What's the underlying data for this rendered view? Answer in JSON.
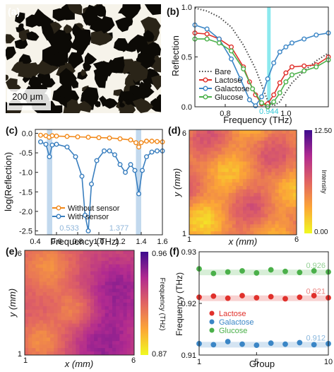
{
  "panel_labels": [
    "(a)",
    "(b)",
    "(c)",
    "(d)",
    "(e)",
    "(f)"
  ],
  "colors": {
    "bare": "#444444",
    "lactose": "#e0312c",
    "galactose": "#3b86c6",
    "glucose": "#4bb04a",
    "without_sensor": "#f28a1c",
    "with_sensor": "#3a7fbf",
    "cyan_marker": "#6fe3ea",
    "band": "#b3d0ea"
  },
  "panel_a": {
    "scale_bar_label": "200 μm"
  },
  "panel_d": {
    "xlabel": "x (mm)",
    "ylabel": "y (mm)",
    "x_ticks": [
      "1",
      "6"
    ],
    "y_ticks": [
      "6",
      "1"
    ],
    "colorbar_label": "Intensity",
    "colorbar_ticks": [
      "12.50",
      "0.00"
    ]
  },
  "panel_e": {
    "xlabel": "x (mm)",
    "ylabel": "y (mm)",
    "x_ticks": [
      "1",
      "6"
    ],
    "y_ticks": [
      "6",
      "1"
    ],
    "colorbar_label": "Frequency (THz)",
    "colorbar_ticks": [
      "0.96",
      "0.87"
    ]
  },
  "chart_data": [
    {
      "id": "b",
      "type": "line",
      "xlabel": "Frequency (THz)",
      "ylabel": "Reflection",
      "xlim": [
        0.7,
        1.14
      ],
      "ylim": [
        0.0,
        1.0
      ],
      "x_ticks": [
        "0.8",
        "1.0"
      ],
      "y_ticks": [
        "0.0",
        "0.5",
        "1.0"
      ],
      "marker_x": 0.944,
      "marker_label": "0.944",
      "legend_position": "bottom-left",
      "series": [
        {
          "name": "Bare",
          "style": "dotted",
          "x": [
            0.7,
            0.74,
            0.78,
            0.82,
            0.86,
            0.9,
            0.92,
            0.94,
            0.96,
            0.98,
            1.0,
            1.02,
            1.06,
            1.1,
            1.14
          ],
          "y": [
            0.99,
            0.96,
            0.9,
            0.8,
            0.62,
            0.38,
            0.22,
            0.06,
            0.01,
            0.05,
            0.15,
            0.24,
            0.36,
            0.46,
            0.54
          ]
        },
        {
          "name": "Lactose",
          "style": "markers",
          "x": [
            0.7,
            0.74,
            0.78,
            0.82,
            0.86,
            0.88,
            0.9,
            0.92,
            0.94,
            0.96,
            0.98,
            1.0,
            1.02,
            1.06,
            1.1,
            1.14
          ],
          "y": [
            0.74,
            0.73,
            0.68,
            0.6,
            0.4,
            0.25,
            0.12,
            0.03,
            0.03,
            0.12,
            0.24,
            0.34,
            0.4,
            0.41,
            0.42,
            0.5
          ]
        },
        {
          "name": "Galactose",
          "style": "markers",
          "x": [
            0.7,
            0.74,
            0.78,
            0.82,
            0.85,
            0.88,
            0.9,
            0.92,
            0.94,
            0.96,
            0.98,
            1.0,
            1.02,
            1.06,
            1.1,
            1.14
          ],
          "y": [
            0.82,
            0.78,
            0.68,
            0.48,
            0.28,
            0.07,
            0.01,
            0.1,
            0.28,
            0.44,
            0.55,
            0.6,
            0.64,
            0.68,
            0.72,
            0.74
          ]
        },
        {
          "name": "Glucose",
          "style": "markers",
          "x": [
            0.7,
            0.74,
            0.78,
            0.82,
            0.86,
            0.89,
            0.92,
            0.94,
            0.96,
            0.98,
            1.0,
            1.02,
            1.06,
            1.1,
            1.14
          ],
          "y": [
            0.68,
            0.68,
            0.64,
            0.56,
            0.38,
            0.18,
            0.04,
            0.0,
            0.05,
            0.14,
            0.25,
            0.32,
            0.36,
            0.4,
            0.47
          ]
        }
      ]
    },
    {
      "id": "c",
      "type": "line",
      "xlabel": "Frequency (THz)",
      "ylabel": "log(Reflection)",
      "xlim": [
        0.4,
        1.6
      ],
      "ylim": [
        -2.6,
        0.1
      ],
      "x_ticks": [
        "0.4",
        "0.6",
        "0.8",
        "1.0",
        "1.2",
        "1.4",
        "1.6"
      ],
      "y_ticks": [
        "0.0",
        "-0.5",
        "-1.0",
        "-1.5",
        "-2.0",
        "-2.5"
      ],
      "bands": [
        [
          0.51,
          0.56
        ],
        [
          1.35,
          1.4
        ]
      ],
      "band_labels": [
        "0.533",
        "1.377"
      ],
      "legend_position": "bottom-left",
      "series": [
        {
          "name": "Without sensor",
          "x": [
            0.45,
            0.5,
            0.53,
            0.56,
            0.6,
            0.7,
            0.8,
            0.9,
            1.0,
            1.1,
            1.2,
            1.3,
            1.35,
            1.377,
            1.4,
            1.45,
            1.5,
            1.55,
            1.6
          ],
          "y": [
            -0.05,
            -0.06,
            -0.1,
            -0.06,
            -0.07,
            -0.08,
            -0.09,
            -0.1,
            -0.11,
            -0.12,
            -0.14,
            -0.17,
            -0.24,
            -0.35,
            -0.24,
            -0.2,
            -0.2,
            -0.21,
            -0.22
          ]
        },
        {
          "name": "With sensor",
          "x": [
            0.45,
            0.5,
            0.533,
            0.56,
            0.6,
            0.7,
            0.78,
            0.84,
            0.87,
            0.9,
            0.93,
            0.98,
            1.05,
            1.1,
            1.15,
            1.2,
            1.25,
            1.3,
            1.34,
            1.377,
            1.41,
            1.45,
            1.5,
            1.55,
            1.6
          ],
          "y": [
            -0.22,
            -0.28,
            -0.6,
            -0.3,
            -0.28,
            -0.35,
            -0.6,
            -1.1,
            -2.1,
            -2.5,
            -1.3,
            -0.7,
            -0.45,
            -0.45,
            -0.55,
            -0.8,
            -1.0,
            -0.8,
            -0.95,
            -1.55,
            -0.95,
            -0.6,
            -0.48,
            -0.45,
            -0.45
          ]
        }
      ]
    },
    {
      "id": "f",
      "type": "scatter",
      "xlabel": "Group",
      "ylabel": "Frequency (THz)",
      "xlim": [
        1,
        10
      ],
      "ylim": [
        0.91,
        0.93
      ],
      "x_ticks": [
        "1",
        "5",
        "10"
      ],
      "y_ticks": [
        "0.91",
        "0.92",
        "0.93"
      ],
      "legend_position": "center-left",
      "series": [
        {
          "name": "Lactose",
          "mean": 0.921,
          "mean_label": "0.921",
          "x": [
            1,
            2,
            3,
            4,
            5,
            6,
            7,
            8,
            9,
            10
          ],
          "y": [
            0.9212,
            0.9214,
            0.921,
            0.9215,
            0.9211,
            0.9213,
            0.9209,
            0.9212,
            0.9215,
            0.9211
          ]
        },
        {
          "name": "Galactose",
          "mean": 0.912,
          "mean_label": "0.912",
          "x": [
            1,
            2,
            3,
            4,
            5,
            6,
            7,
            8,
            9,
            10
          ],
          "y": [
            0.9122,
            0.912,
            0.9126,
            0.9121,
            0.9119,
            0.9123,
            0.9121,
            0.9124,
            0.912,
            0.9122
          ]
        },
        {
          "name": "Glucose",
          "mean": 0.926,
          "mean_label": "0.926",
          "x": [
            1,
            2,
            3,
            4,
            5,
            6,
            7,
            8,
            9,
            10
          ],
          "y": [
            0.9267,
            0.9258,
            0.9261,
            0.9263,
            0.9259,
            0.9265,
            0.9262,
            0.926,
            0.9263,
            0.9261
          ]
        }
      ]
    }
  ]
}
